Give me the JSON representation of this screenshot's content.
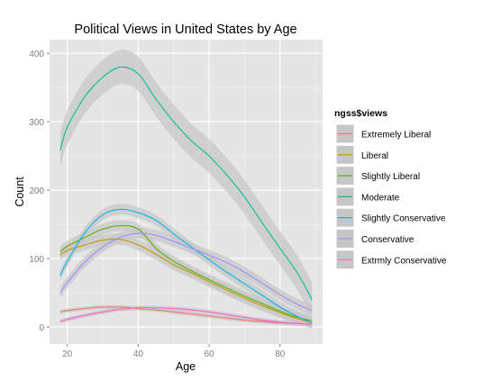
{
  "chart_data": {
    "type": "line",
    "title": "Political Views in United States by Age",
    "xlabel": "Age",
    "ylabel": "Count",
    "xlim": [
      15,
      92
    ],
    "ylim": [
      -25,
      420
    ],
    "x_ticks": [
      20,
      40,
      60,
      80
    ],
    "y_ticks": [
      0,
      100,
      200,
      300,
      400
    ],
    "grid": true,
    "legend_position": "right",
    "legend_title": "ngss$views",
    "colors": {
      "panel_bg": "#e5e5e5",
      "grid_major": "#ffffff",
      "grid_minor": "#f2f2f2",
      "band": "#c6c6c6",
      "tick_text": "#7f7f7f"
    },
    "x": [
      18,
      20,
      25,
      30,
      35,
      40,
      45,
      50,
      55,
      60,
      65,
      70,
      75,
      80,
      85,
      89
    ],
    "series": [
      {
        "name": "Extremely Liberal",
        "color": "#f8766d",
        "band": 3,
        "values": [
          22,
          24,
          27,
          29,
          29,
          27,
          25,
          22,
          19,
          16,
          13,
          10,
          8,
          6,
          5,
          4
        ]
      },
      {
        "name": "Liberal",
        "color": "#c49a00",
        "band": 8,
        "values": [
          105,
          112,
          120,
          127,
          128,
          120,
          106,
          91,
          79,
          66,
          54,
          42,
          31,
          21,
          12,
          6
        ]
      },
      {
        "name": "Slightly Liberal",
        "color": "#53b400",
        "band": 8,
        "values": [
          110,
          118,
          131,
          143,
          148,
          143,
          115,
          96,
          82,
          69,
          57,
          45,
          34,
          23,
          14,
          9
        ]
      },
      {
        "name": "Moderate",
        "color": "#00c094",
        "band": 25,
        "values": [
          258,
          292,
          337,
          365,
          380,
          370,
          333,
          300,
          272,
          250,
          222,
          190,
          152,
          115,
          78,
          40
        ]
      },
      {
        "name": "Slightly Conservative",
        "color": "#00b6eb",
        "band": 8,
        "values": [
          75,
          96,
          138,
          164,
          172,
          167,
          156,
          136,
          117,
          98,
          80,
          63,
          46,
          29,
          15,
          6
        ]
      },
      {
        "name": "Conservative",
        "color": "#a58aff",
        "band": 8,
        "values": [
          50,
          65,
          95,
          117,
          131,
          137,
          134,
          125,
          115,
          105,
          94,
          80,
          64,
          47,
          33,
          24
        ]
      },
      {
        "name": "Extrmly Conservative",
        "color": "#fb61d7",
        "band": 3,
        "values": [
          8,
          11,
          17,
          22,
          26,
          28,
          28,
          27,
          25,
          22,
          18,
          14,
          10,
          7,
          5,
          4
        ]
      }
    ]
  }
}
